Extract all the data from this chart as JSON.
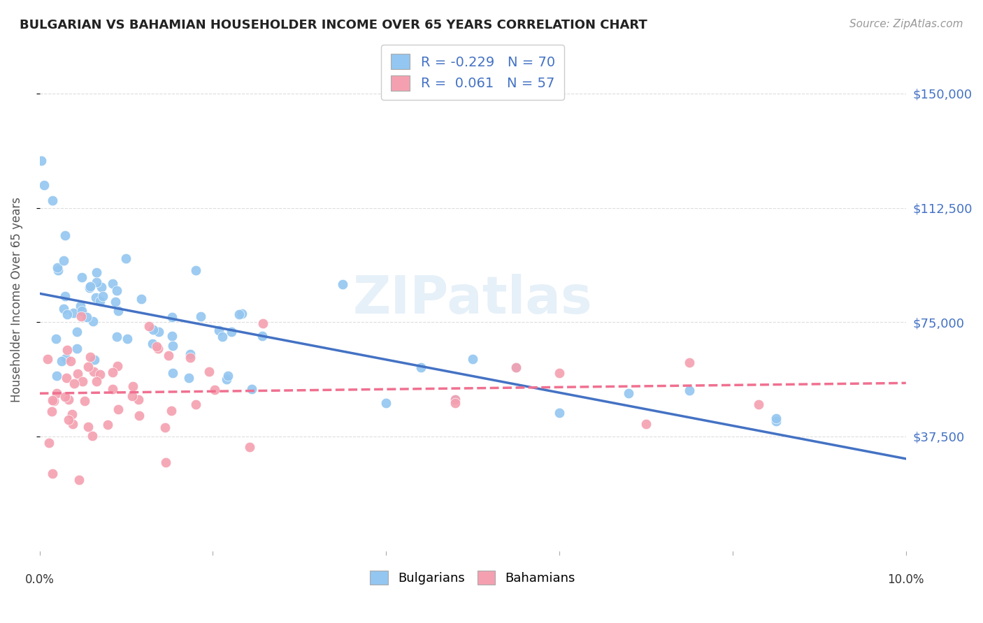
{
  "title": "BULGARIAN VS BAHAMIAN HOUSEHOLDER INCOME OVER 65 YEARS CORRELATION CHART",
  "source": "Source: ZipAtlas.com",
  "ylabel": "Householder Income Over 65 years",
  "ytick_labels": [
    "$37,500",
    "$75,000",
    "$112,500",
    "$150,000"
  ],
  "ytick_values": [
    37500,
    75000,
    112500,
    150000
  ],
  "ymin": 0,
  "ymax": 165000,
  "xmin": 0.0,
  "xmax": 0.1,
  "bulgarian_color": "#93c6f0",
  "bahamian_color": "#f4a0b0",
  "bulgarian_line_color": "#4472c4",
  "bahamian_line_color": "#f07090",
  "r_bulgarian": -0.229,
  "n_bulgarian": 70,
  "r_bahamian": 0.061,
  "n_bahamian": 57,
  "legend_entries": [
    "Bulgarians",
    "Bahamians"
  ],
  "watermark": "ZIPatlas",
  "background_color": "#ffffff",
  "grid_color": "#dddddd",
  "title_color": "#222222",
  "axis_label_color": "#4472c4"
}
